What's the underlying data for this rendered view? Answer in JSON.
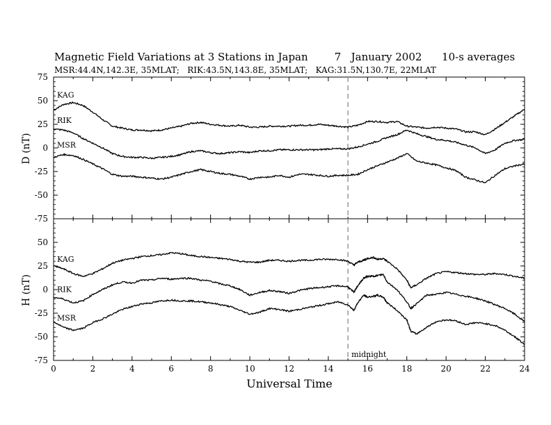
{
  "header": {
    "title": "Magnetic Field Variations at 3 Stations in Japan        7   January 2002      10-s averages",
    "subtitle": "MSR:44.4N,142.3E, 35MLAT;   RIK:43.5N,143.8E, 35MLAT;   KAG:31.5N,130.7E, 22MLAT"
  },
  "chart_data": [
    {
      "type": "line",
      "panel": "top",
      "ylabel": "D (nT)",
      "ylim": [
        -75,
        75
      ],
      "yticks": [
        75,
        50,
        25,
        0,
        -25,
        -50,
        -75
      ],
      "xlim": [
        0,
        24
      ],
      "grid": false,
      "series": [
        {
          "name": "KAG",
          "x": [
            0,
            0.5,
            1,
            1.5,
            2,
            2.5,
            3,
            3.5,
            4,
            4.5,
            5,
            5.5,
            6,
            6.5,
            7,
            7.5,
            8,
            8.5,
            9,
            9.5,
            10,
            10.5,
            11,
            11.5,
            12,
            12.5,
            13,
            13.5,
            14,
            14.5,
            15,
            15.5,
            16,
            16.5,
            17,
            17.5,
            18,
            18.5,
            19,
            19.5,
            20,
            20.5,
            21,
            21.5,
            22,
            22.5,
            23,
            23.5,
            24
          ],
          "values": [
            40,
            46,
            48,
            45,
            38,
            30,
            23,
            21,
            19,
            19,
            18,
            19,
            21,
            23,
            26,
            27,
            25,
            24,
            23,
            24,
            22,
            22,
            23,
            23,
            23,
            24,
            24,
            25,
            24,
            23,
            22,
            24,
            28,
            28,
            27,
            28,
            23,
            22,
            21,
            22,
            21,
            20,
            17,
            17,
            14,
            20,
            27,
            34,
            41
          ]
        },
        {
          "name": "RIK",
          "x": [
            0,
            0.5,
            1,
            1.5,
            2,
            2.5,
            3,
            3.5,
            4,
            4.5,
            5,
            5.5,
            6,
            6.5,
            7,
            7.5,
            8,
            8.5,
            9,
            9.5,
            10,
            10.5,
            11,
            11.5,
            12,
            12.5,
            13,
            13.5,
            14,
            14.5,
            15,
            15.5,
            16,
            16.5,
            17,
            17.5,
            18,
            18.5,
            19,
            19.5,
            20,
            20.5,
            21,
            21.5,
            22,
            22.5,
            23,
            23.5,
            24
          ],
          "values": [
            20,
            19,
            16,
            10,
            5,
            0,
            -6,
            -9,
            -10,
            -10,
            -11,
            -10,
            -9,
            -7,
            -4,
            -3,
            -5,
            -6,
            -5,
            -4,
            -5,
            -3,
            -3,
            -2,
            -2,
            -2,
            -2,
            -2,
            -1,
            -1,
            -1,
            1,
            4,
            7,
            11,
            14,
            19,
            15,
            12,
            9,
            8,
            6,
            3,
            0,
            -6,
            -2,
            5,
            8,
            9
          ]
        },
        {
          "name": "MSR",
          "x": [
            0,
            0.5,
            1,
            1.5,
            2,
            2.5,
            3,
            3.5,
            4,
            4.5,
            5,
            5.5,
            6,
            6.5,
            7,
            7.5,
            8,
            8.5,
            9,
            9.5,
            10,
            10.5,
            11,
            11.5,
            12,
            12.5,
            13,
            13.5,
            14,
            14.5,
            15,
            15.5,
            16,
            16.5,
            17,
            17.5,
            18,
            18.5,
            19,
            19.5,
            20,
            20.5,
            21,
            21.5,
            22,
            22.5,
            23,
            23.5,
            24
          ],
          "values": [
            -10,
            -7,
            -8,
            -12,
            -17,
            -22,
            -28,
            -30,
            -30,
            -31,
            -32,
            -33,
            -31,
            -28,
            -25,
            -23,
            -25,
            -27,
            -28,
            -30,
            -33,
            -31,
            -31,
            -29,
            -31,
            -28,
            -28,
            -29,
            -30,
            -29,
            -29,
            -28,
            -23,
            -19,
            -15,
            -11,
            -6,
            -14,
            -16,
            -18,
            -21,
            -24,
            -31,
            -34,
            -37,
            -29,
            -22,
            -19,
            -17
          ]
        }
      ]
    },
    {
      "type": "line",
      "panel": "bottom",
      "xlabel": "Universal Time",
      "ylabel": "H (nT)",
      "ylim": [
        -75,
        75
      ],
      "yticks": [
        50,
        25,
        0,
        -25,
        -50,
        -75
      ],
      "xlim": [
        0,
        24
      ],
      "xticks": [
        0,
        2,
        4,
        6,
        8,
        10,
        12,
        14,
        16,
        18,
        20,
        22,
        24
      ],
      "grid": false,
      "annotations": [
        {
          "text": "midnight",
          "x": 15
        }
      ],
      "reference_line_x": 15,
      "series": [
        {
          "name": "KAG",
          "x": [
            0,
            0.5,
            1,
            1.5,
            2,
            2.5,
            3,
            3.5,
            4,
            4.5,
            5,
            5.5,
            6,
            6.5,
            7,
            7.5,
            8,
            8.5,
            9,
            9.5,
            10,
            10.5,
            11,
            11.5,
            12,
            12.5,
            13,
            13.5,
            14,
            14.5,
            15,
            15.3,
            15.5,
            15.8,
            16,
            16.3,
            16.5,
            16.8,
            17,
            17.5,
            18,
            18.2,
            18.5,
            19,
            19.5,
            20,
            20.5,
            21,
            21.5,
            22,
            22.5,
            23,
            23.5,
            24
          ],
          "values": [
            25,
            22,
            17,
            14,
            17,
            22,
            28,
            31,
            33,
            35,
            36,
            37,
            39,
            38,
            36,
            35,
            34,
            33,
            32,
            30,
            29,
            29,
            31,
            31,
            30,
            31,
            31,
            32,
            32,
            32,
            30,
            26,
            29,
            31,
            33,
            34,
            32,
            33,
            30,
            22,
            10,
            2,
            5,
            12,
            17,
            19,
            18,
            17,
            16,
            16,
            17,
            16,
            14,
            12
          ]
        },
        {
          "name": "RIK",
          "x": [
            0,
            0.5,
            1,
            1.5,
            2,
            2.5,
            3,
            3.5,
            4,
            4.5,
            5,
            5.5,
            6,
            6.5,
            7,
            7.5,
            8,
            8.5,
            9,
            9.5,
            10,
            10.5,
            11,
            11.5,
            12,
            12.5,
            13,
            13.5,
            14,
            14.5,
            15,
            15.3,
            15.5,
            15.8,
            16,
            16.3,
            16.5,
            16.8,
            17,
            17.5,
            18,
            18.2,
            18.5,
            19,
            19.5,
            20,
            20.5,
            21,
            21.5,
            22,
            22.5,
            23,
            23.5,
            24
          ],
          "values": [
            -8,
            -10,
            -14,
            -12,
            -5,
            0,
            5,
            8,
            7,
            10,
            10,
            12,
            11,
            12,
            12,
            10,
            9,
            6,
            4,
            0,
            -6,
            -3,
            -1,
            -2,
            -4,
            -1,
            1,
            2,
            3,
            4,
            3,
            -3,
            4,
            12,
            14,
            14,
            15,
            16,
            8,
            0,
            -13,
            -20,
            -15,
            -6,
            -5,
            -3,
            -5,
            -7,
            -9,
            -12,
            -16,
            -20,
            -26,
            -34
          ]
        },
        {
          "name": "MSR",
          "x": [
            0,
            0.5,
            1,
            1.5,
            2,
            2.5,
            3,
            3.5,
            4,
            4.5,
            5,
            5.5,
            6,
            6.5,
            7,
            7.5,
            8,
            8.5,
            9,
            9.5,
            10,
            10.5,
            11,
            11.5,
            12,
            12.5,
            13,
            13.5,
            14,
            14.5,
            15,
            15.3,
            15.5,
            15.8,
            16,
            16.3,
            16.5,
            16.8,
            17,
            17.5,
            18,
            18.2,
            18.5,
            19,
            19.5,
            20,
            20.5,
            21,
            21.5,
            22,
            22.5,
            23,
            23.5,
            24
          ],
          "values": [
            -34,
            -40,
            -43,
            -41,
            -35,
            -31,
            -26,
            -21,
            -18,
            -15,
            -14,
            -12,
            -11,
            -12,
            -12,
            -13,
            -14,
            -16,
            -18,
            -22,
            -26,
            -24,
            -20,
            -21,
            -23,
            -21,
            -19,
            -17,
            -15,
            -13,
            -16,
            -22,
            -14,
            -6,
            -8,
            -7,
            -6,
            -8,
            -14,
            -22,
            -32,
            -44,
            -47,
            -40,
            -34,
            -32,
            -33,
            -37,
            -35,
            -36,
            -38,
            -43,
            -50,
            -58
          ]
        }
      ]
    }
  ]
}
